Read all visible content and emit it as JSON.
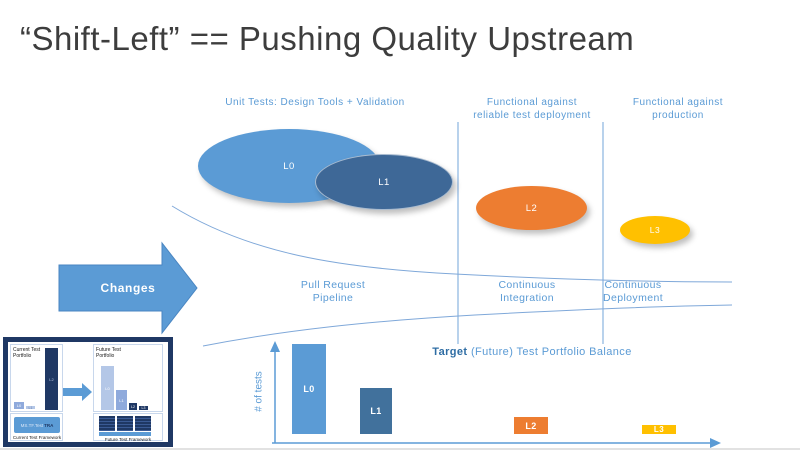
{
  "title": "“Shift-Left” == Pushing Quality Upstream",
  "colors": {
    "accent_blue": "#5b9bd5",
    "dark_steel_blue": "#3e6897",
    "orange": "#ed7d31",
    "gold": "#ffc000",
    "navy": "#1f3864",
    "label_text_blue": "#5b9bd5",
    "title_gray": "#3d3d3d",
    "thin_line_blue": "#8ab4e0"
  },
  "stages": [
    {
      "header": "Unit Tests: Design Tools + Validation",
      "pipeline": "Pull Request Pipeline"
    },
    {
      "header": "Functional against reliable test deployment",
      "pipeline": "Continuous Integration"
    },
    {
      "header": "Functional against production",
      "pipeline": "Continuous Deployment"
    }
  ],
  "changes_arrow": {
    "label": "Changes"
  },
  "bubbles": [
    {
      "label": "L0",
      "color": "#5b9bd5"
    },
    {
      "label": "L1",
      "color": "#3e6897"
    },
    {
      "label": "L2",
      "color": "#ed7d31"
    },
    {
      "label": "L3",
      "color": "#ffc000"
    }
  ],
  "target_chart": {
    "title_bold": "Target",
    "title_rest": " (Future) Test Portfolio Balance",
    "ylabel": "# of tests"
  },
  "chart_data": [
    {
      "type": "bar",
      "title": "Target (Future) Test Portfolio Balance",
      "xlabel": "",
      "ylabel": "# of tests",
      "categories": [
        "L0",
        "L1",
        "L2",
        "L3"
      ],
      "values": [
        90,
        46,
        17,
        9
      ],
      "colors": [
        "#5b9bd5",
        "#41719c",
        "#ed7d31",
        "#ffc000"
      ],
      "value_units": "relative height (no numeric axis shown)",
      "grid": false,
      "legend": false
    },
    {
      "type": "bar",
      "title": "Current Test Portfolio",
      "categories": [
        "L0",
        "L1",
        "L2"
      ],
      "values": [
        7,
        3,
        62
      ],
      "colors": [
        "#8faadc",
        "#b4c7e7",
        "#1f3864"
      ]
    },
    {
      "type": "bar",
      "title": "Future Test Portfolio",
      "categories": [
        "L0",
        "L1",
        "L2",
        "L3"
      ],
      "values": [
        44,
        20,
        7,
        4
      ],
      "colors": [
        "#b4c7e7",
        "#8faadc",
        "#1f3864",
        "#1f3864"
      ]
    }
  ],
  "inset": {
    "current": {
      "title": "Current Test Portfolio",
      "bar_labels": [
        "L0",
        "L1",
        "L2"
      ],
      "framework_box": {
        "light": "MS.TF.Test",
        "dark": "TRA"
      },
      "framework_label": "Current Test Framework"
    },
    "future": {
      "title": "Future Test Portfolio",
      "bar_labels": [
        "L0",
        "L1",
        "L2",
        "L3"
      ],
      "framework_label": "Future Test Framework"
    }
  }
}
